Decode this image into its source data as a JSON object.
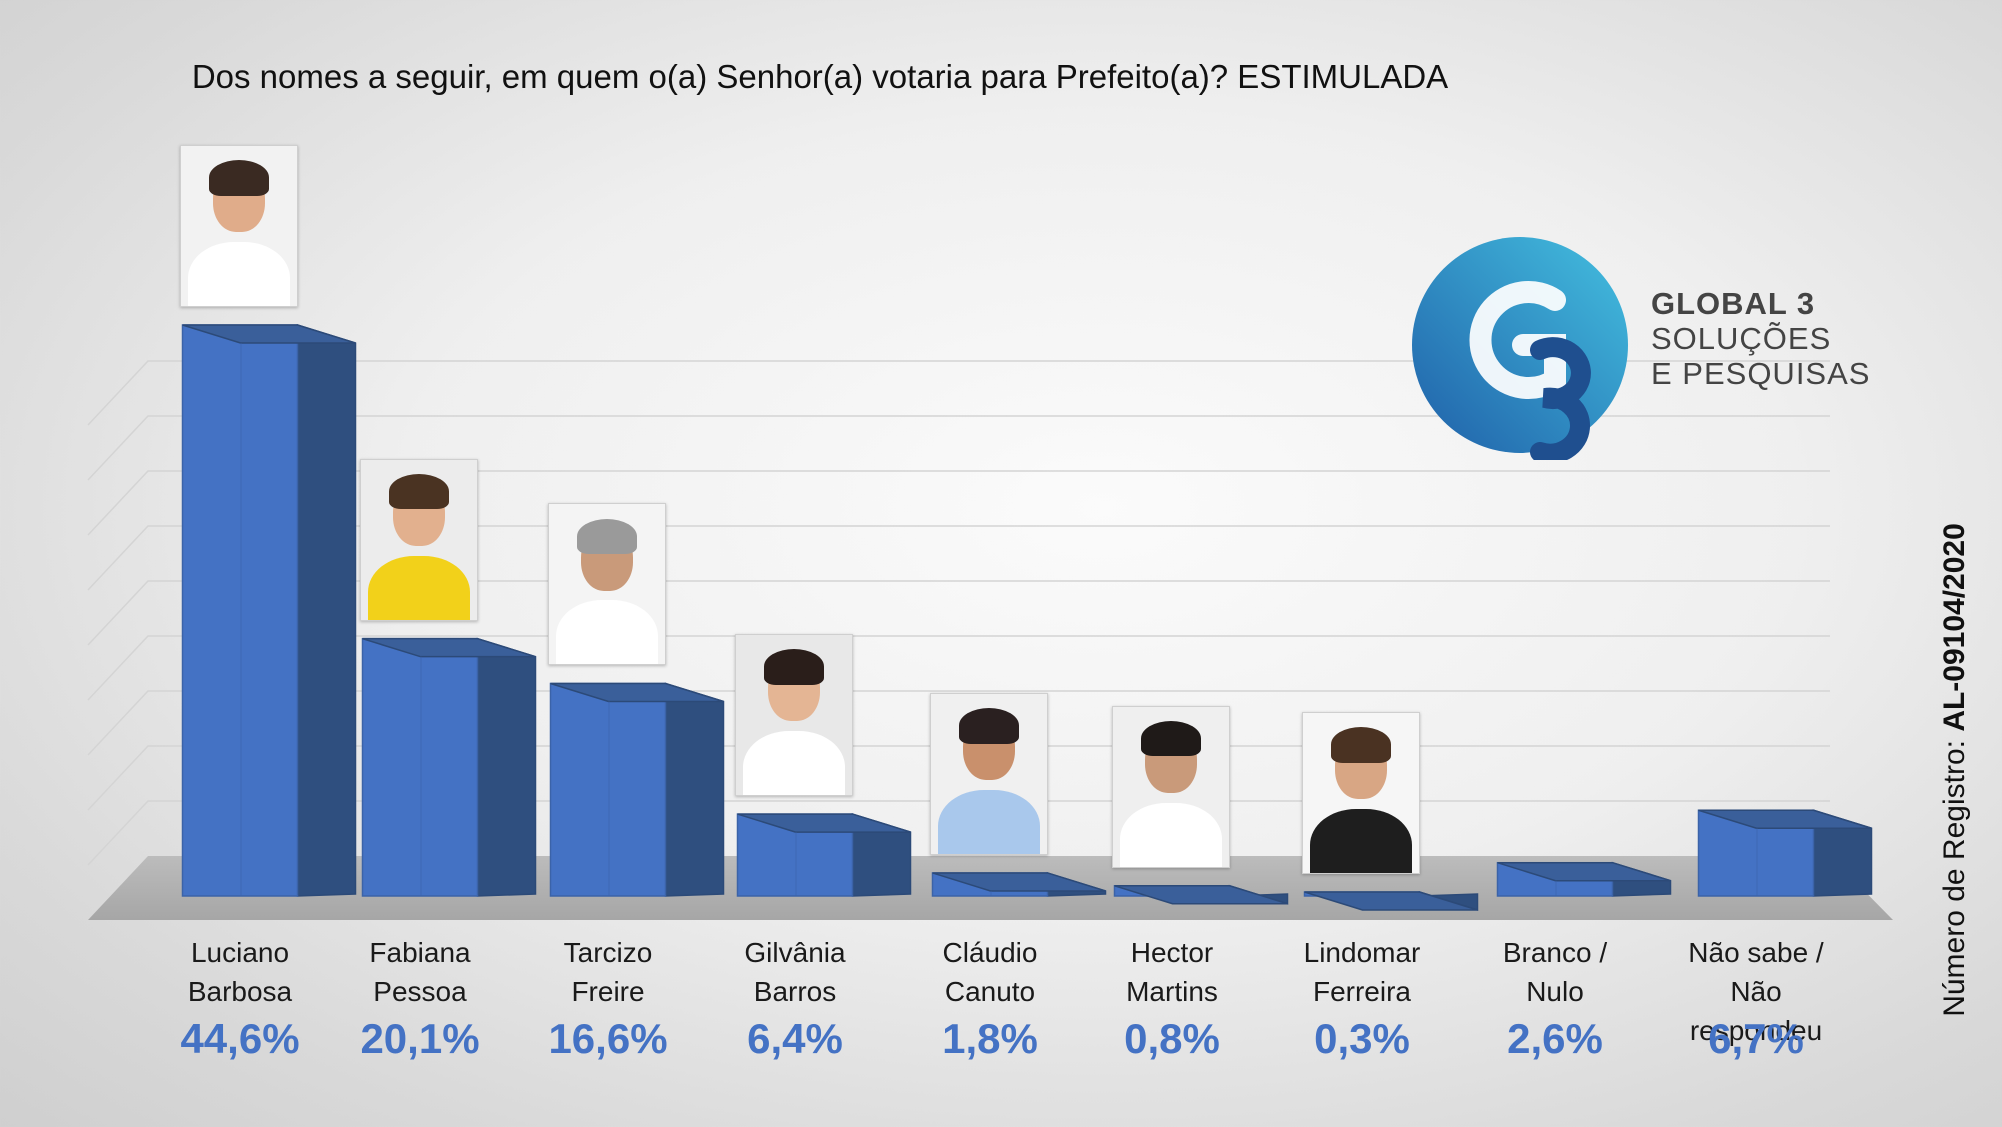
{
  "chart_data": {
    "type": "bar",
    "title": "Dos nomes a seguir, em quem o(a) Senhor(a) votaria para Prefeito(a)? ESTIMULADA",
    "categories": [
      [
        "Luciano",
        "Barbosa"
      ],
      [
        "Fabiana",
        "Pessoa"
      ],
      [
        "Tarcizo",
        "Freire"
      ],
      [
        "Gilvânia",
        "Barros"
      ],
      [
        "Cláudio",
        "Canuto"
      ],
      [
        "Hector",
        "Martins"
      ],
      [
        "Lindomar",
        "Ferreira"
      ],
      [
        "Branco /",
        "Nulo"
      ],
      [
        "Não sabe /",
        "Não respondeu"
      ]
    ],
    "values": [
      44.6,
      20.1,
      16.6,
      6.4,
      1.8,
      0.8,
      0.3,
      2.6,
      6.7
    ],
    "value_labels": [
      "44,6%",
      "20,1%",
      "16,6%",
      "6,4%",
      "1,8%",
      "0,8%",
      "0,3%",
      "2,6%",
      "6,7%"
    ],
    "ylim": [
      0,
      50
    ],
    "grid": true,
    "legend": "none",
    "bar_color": "#4472c4",
    "bar_side_color": "#2f4f7f"
  },
  "logo": {
    "line1": "GLOBAL 3",
    "line2": "SOLUÇÕES",
    "line3": "E PESQUISAS",
    "mark": "G3",
    "colors": [
      "#1f6fb5",
      "#3fb6d8"
    ]
  },
  "registro": {
    "label": "Número de Registro: ",
    "number": "AL-09104/2020"
  },
  "photos": [
    {
      "name": "Luciano Barbosa",
      "bg": "#f2f2f2",
      "skin": "#e0ac8a",
      "hair": "#3a2a22",
      "shirt": "#ffffff"
    },
    {
      "name": "Fabiana Pessoa",
      "bg": "#ececec",
      "skin": "#e2b08e",
      "hair": "#4a3322",
      "shirt": "#f2d11a"
    },
    {
      "name": "Tarcizo Freire",
      "bg": "#f4f4f4",
      "skin": "#c99a7a",
      "hair": "#9a9a9a",
      "shirt": "#ffffff"
    },
    {
      "name": "Gilvânia Barros",
      "bg": "#e8e8e8",
      "skin": "#e4b594",
      "hair": "#2a1e1a",
      "shirt": "#ffffff"
    },
    {
      "name": "Cláudio Canuto",
      "bg": "#f0f0f0",
      "skin": "#c9906c",
      "hair": "#2a2020",
      "shirt": "#a9c8ec"
    },
    {
      "name": "Hector Martins",
      "bg": "#efefef",
      "skin": "#c99a7a",
      "hair": "#1f1a18",
      "shirt": "#ffffff"
    },
    {
      "name": "Lindomar Ferreira",
      "bg": "#f6f6f6",
      "skin": "#d8a684",
      "hair": "#4a3222",
      "shirt": "#1e1e1e"
    }
  ]
}
